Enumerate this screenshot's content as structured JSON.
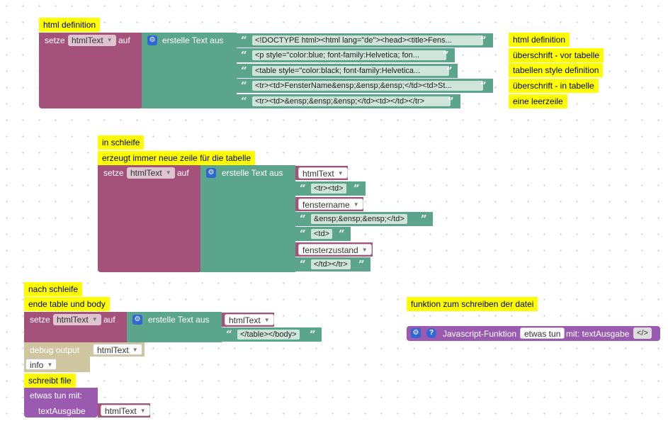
{
  "comments": {
    "html_definition": "html definition",
    "c_html_definition": "html definition",
    "c_ueberschrift_vor": "überschrift - vor tabelle",
    "c_tabellen_style": "tabellen style definition",
    "c_ueberschrift_in": "überschrift - in tabelle",
    "c_leerzeile": "eine leerzeile",
    "in_schleife": "in schleife",
    "erzeugt": "erzeugt immer neue zeile für die tabelle",
    "nach_schleife": "nach schleife",
    "ende_table": "ende table und body",
    "schreibt_file": "schreibt file",
    "funktion_schreiben": "funktion zum schreiben der datei"
  },
  "labels": {
    "setze": "setze",
    "auf": "auf",
    "erstelle_text_aus": "erstelle Text aus",
    "debug_output": "debug output",
    "info": "info",
    "etwas_tun_mit": "etwas tun   mit:",
    "text_ausgabe": "textAusgabe",
    "js_funktion": "Javascript-Funktion",
    "etwas_tun": "etwas tun",
    "mit_textausgabe": "mit: textAusgabe",
    "code_icon": "</>"
  },
  "variables": {
    "html_text": "htmlText",
    "fenstername": "fenstername",
    "fensterzustand": "fensterzustand"
  },
  "block1_strings": [
    "<!DOCTYPE html><html lang=\"de\"><head><title>Fens...",
    "<p style=\"color:blue; font-family:Helvetica; fon...",
    "<table style=\"color:black; font-family:Helvetica...",
    "<tr><td>FensterName&ensp;&ensp;&ensp;</td><td>St...",
    "<tr><td>&ensp;&ensp;&ensp;</td><td></td></tr>"
  ],
  "block2_strings": {
    "s1": "<tr><td>",
    "s2": "&ensp;&ensp;&ensp;</td>",
    "s3": "<td>",
    "s4": "</td></tr>"
  },
  "block3_strings": {
    "s1": "</table></body>"
  },
  "icons": {
    "gear": "gear-icon",
    "help": "help-icon",
    "dropdown": "chevron-down-icon"
  },
  "colors": {
    "variables_block": "#a5527a",
    "text_block": "#5ba58c",
    "procedure_block": "#9a5ab0",
    "comment": "#fffe00",
    "disabled_block": "#cfc6a0",
    "icon": "#2f68d4"
  }
}
